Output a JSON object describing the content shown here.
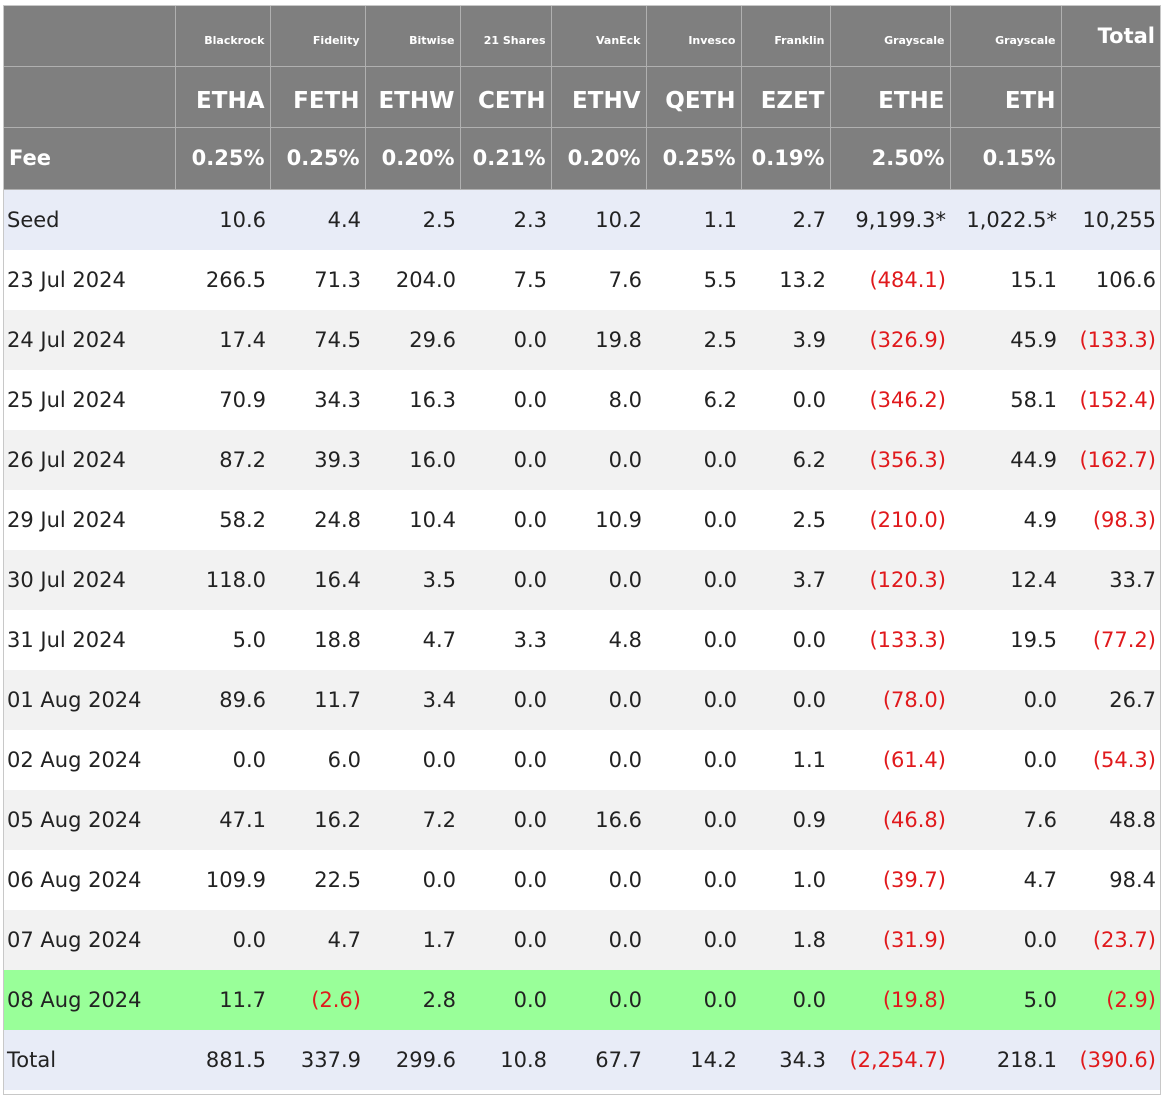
{
  "header": {
    "issuers": [
      "Blackrock",
      "Fidelity",
      "Bitwise",
      "21 Shares",
      "VanEck",
      "Invesco",
      "Franklin",
      "Grayscale",
      "Grayscale"
    ],
    "total_label": "Total",
    "tickers": [
      "ETHA",
      "FETH",
      "ETHW",
      "CETH",
      "ETHV",
      "QETH",
      "EZET",
      "ETHE",
      "ETH"
    ],
    "fee_label": "Fee",
    "fees": [
      "0.25%",
      "0.25%",
      "0.20%",
      "0.21%",
      "0.20%",
      "0.25%",
      "0.19%",
      "2.50%",
      "0.15%"
    ]
  },
  "rows": [
    {
      "label": "Seed",
      "values": [
        "10.6",
        "4.4",
        "2.5",
        "2.3",
        "10.2",
        "1.1",
        "2.7",
        "9,199.3*",
        "1,022.5*",
        "10,255"
      ]
    },
    {
      "label": "23 Jul 2024",
      "values": [
        "266.5",
        "71.3",
        "204.0",
        "7.5",
        "7.6",
        "5.5",
        "13.2",
        "(484.1)",
        "15.1",
        "106.6"
      ]
    },
    {
      "label": "24 Jul 2024",
      "values": [
        "17.4",
        "74.5",
        "29.6",
        "0.0",
        "19.8",
        "2.5",
        "3.9",
        "(326.9)",
        "45.9",
        "(133.3)"
      ]
    },
    {
      "label": "25 Jul 2024",
      "values": [
        "70.9",
        "34.3",
        "16.3",
        "0.0",
        "8.0",
        "6.2",
        "0.0",
        "(346.2)",
        "58.1",
        "(152.4)"
      ]
    },
    {
      "label": "26 Jul 2024",
      "values": [
        "87.2",
        "39.3",
        "16.0",
        "0.0",
        "0.0",
        "0.0",
        "6.2",
        "(356.3)",
        "44.9",
        "(162.7)"
      ]
    },
    {
      "label": "29 Jul 2024",
      "values": [
        "58.2",
        "24.8",
        "10.4",
        "0.0",
        "10.9",
        "0.0",
        "2.5",
        "(210.0)",
        "4.9",
        "(98.3)"
      ]
    },
    {
      "label": "30 Jul 2024",
      "values": [
        "118.0",
        "16.4",
        "3.5",
        "0.0",
        "0.0",
        "0.0",
        "3.7",
        "(120.3)",
        "12.4",
        "33.7"
      ]
    },
    {
      "label": "31 Jul 2024",
      "values": [
        "5.0",
        "18.8",
        "4.7",
        "3.3",
        "4.8",
        "0.0",
        "0.0",
        "(133.3)",
        "19.5",
        "(77.2)"
      ]
    },
    {
      "label": "01 Aug 2024",
      "values": [
        "89.6",
        "11.7",
        "3.4",
        "0.0",
        "0.0",
        "0.0",
        "0.0",
        "(78.0)",
        "0.0",
        "26.7"
      ]
    },
    {
      "label": "02 Aug 2024",
      "values": [
        "0.0",
        "6.0",
        "0.0",
        "0.0",
        "0.0",
        "0.0",
        "1.1",
        "(61.4)",
        "0.0",
        "(54.3)"
      ]
    },
    {
      "label": "05 Aug 2024",
      "values": [
        "47.1",
        "16.2",
        "7.2",
        "0.0",
        "16.6",
        "0.0",
        "0.9",
        "(46.8)",
        "7.6",
        "48.8"
      ]
    },
    {
      "label": "06 Aug 2024",
      "values": [
        "109.9",
        "22.5",
        "0.0",
        "0.0",
        "0.0",
        "0.0",
        "1.0",
        "(39.7)",
        "4.7",
        "98.4"
      ]
    },
    {
      "label": "07 Aug 2024",
      "values": [
        "0.0",
        "4.7",
        "1.7",
        "0.0",
        "0.0",
        "0.0",
        "1.8",
        "(31.9)",
        "0.0",
        "(23.7)"
      ]
    },
    {
      "label": "08 Aug 2024",
      "values": [
        "11.7",
        "(2.6)",
        "2.8",
        "0.0",
        "0.0",
        "0.0",
        "0.0",
        "(19.8)",
        "5.0",
        "(2.9)"
      ]
    },
    {
      "label": "Total",
      "values": [
        "881.5",
        "337.9",
        "299.6",
        "10.8",
        "67.7",
        "14.2",
        "34.3",
        "(2,254.7)",
        "218.1",
        "(390.6)"
      ]
    }
  ],
  "colors": {
    "header_bg": "#7f7f7f",
    "negative": "#e0191c",
    "latest_row": "#99ff99",
    "seed_total_row": "#e8ecf7",
    "stripe": "#f2f2f2"
  }
}
